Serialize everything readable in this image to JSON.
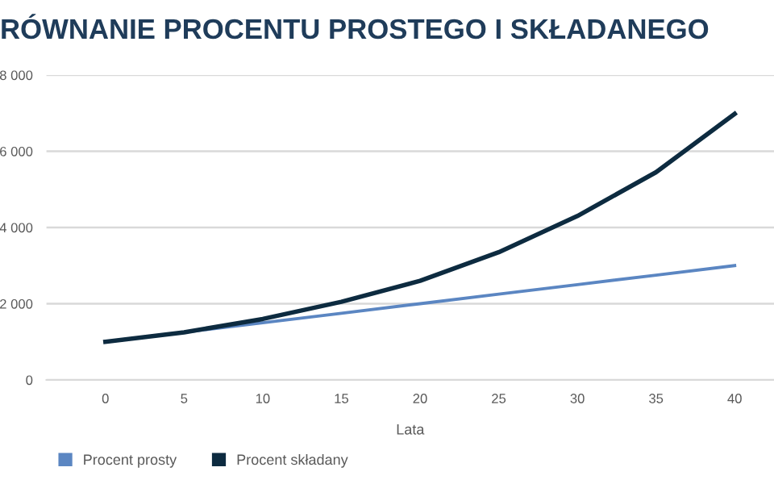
{
  "chart_data": {
    "type": "line",
    "title": "RÓWNANIE PROCENTU PROSTEGO I SKŁADANEGO",
    "xlabel": "Lata",
    "categories": [
      "0",
      "5",
      "10",
      "15",
      "20",
      "25",
      "30",
      "35",
      "40"
    ],
    "series": [
      {
        "name": "Procent prosty",
        "color": "#5b86c2",
        "values": [
          1000,
          1250,
          1500,
          1750,
          2000,
          2250,
          2500,
          2750,
          3000
        ]
      },
      {
        "name": "Procent składany",
        "color": "#0d2b40",
        "values": [
          1000,
          1250,
          1600,
          2050,
          2600,
          3350,
          4300,
          5450,
          6980
        ]
      }
    ],
    "ylim": [
      0,
      8000
    ],
    "yticks": [
      0,
      {
        "value": 2000,
        "label": "2 000"
      },
      {
        "value": 4000,
        "label": "4 000"
      },
      {
        "value": 6000,
        "label": "6 000"
      },
      {
        "value": 8000,
        "label": "8 000"
      }
    ],
    "grid": "y",
    "legend": "bottom left",
    "marker": "none",
    "line_style": "solid"
  }
}
